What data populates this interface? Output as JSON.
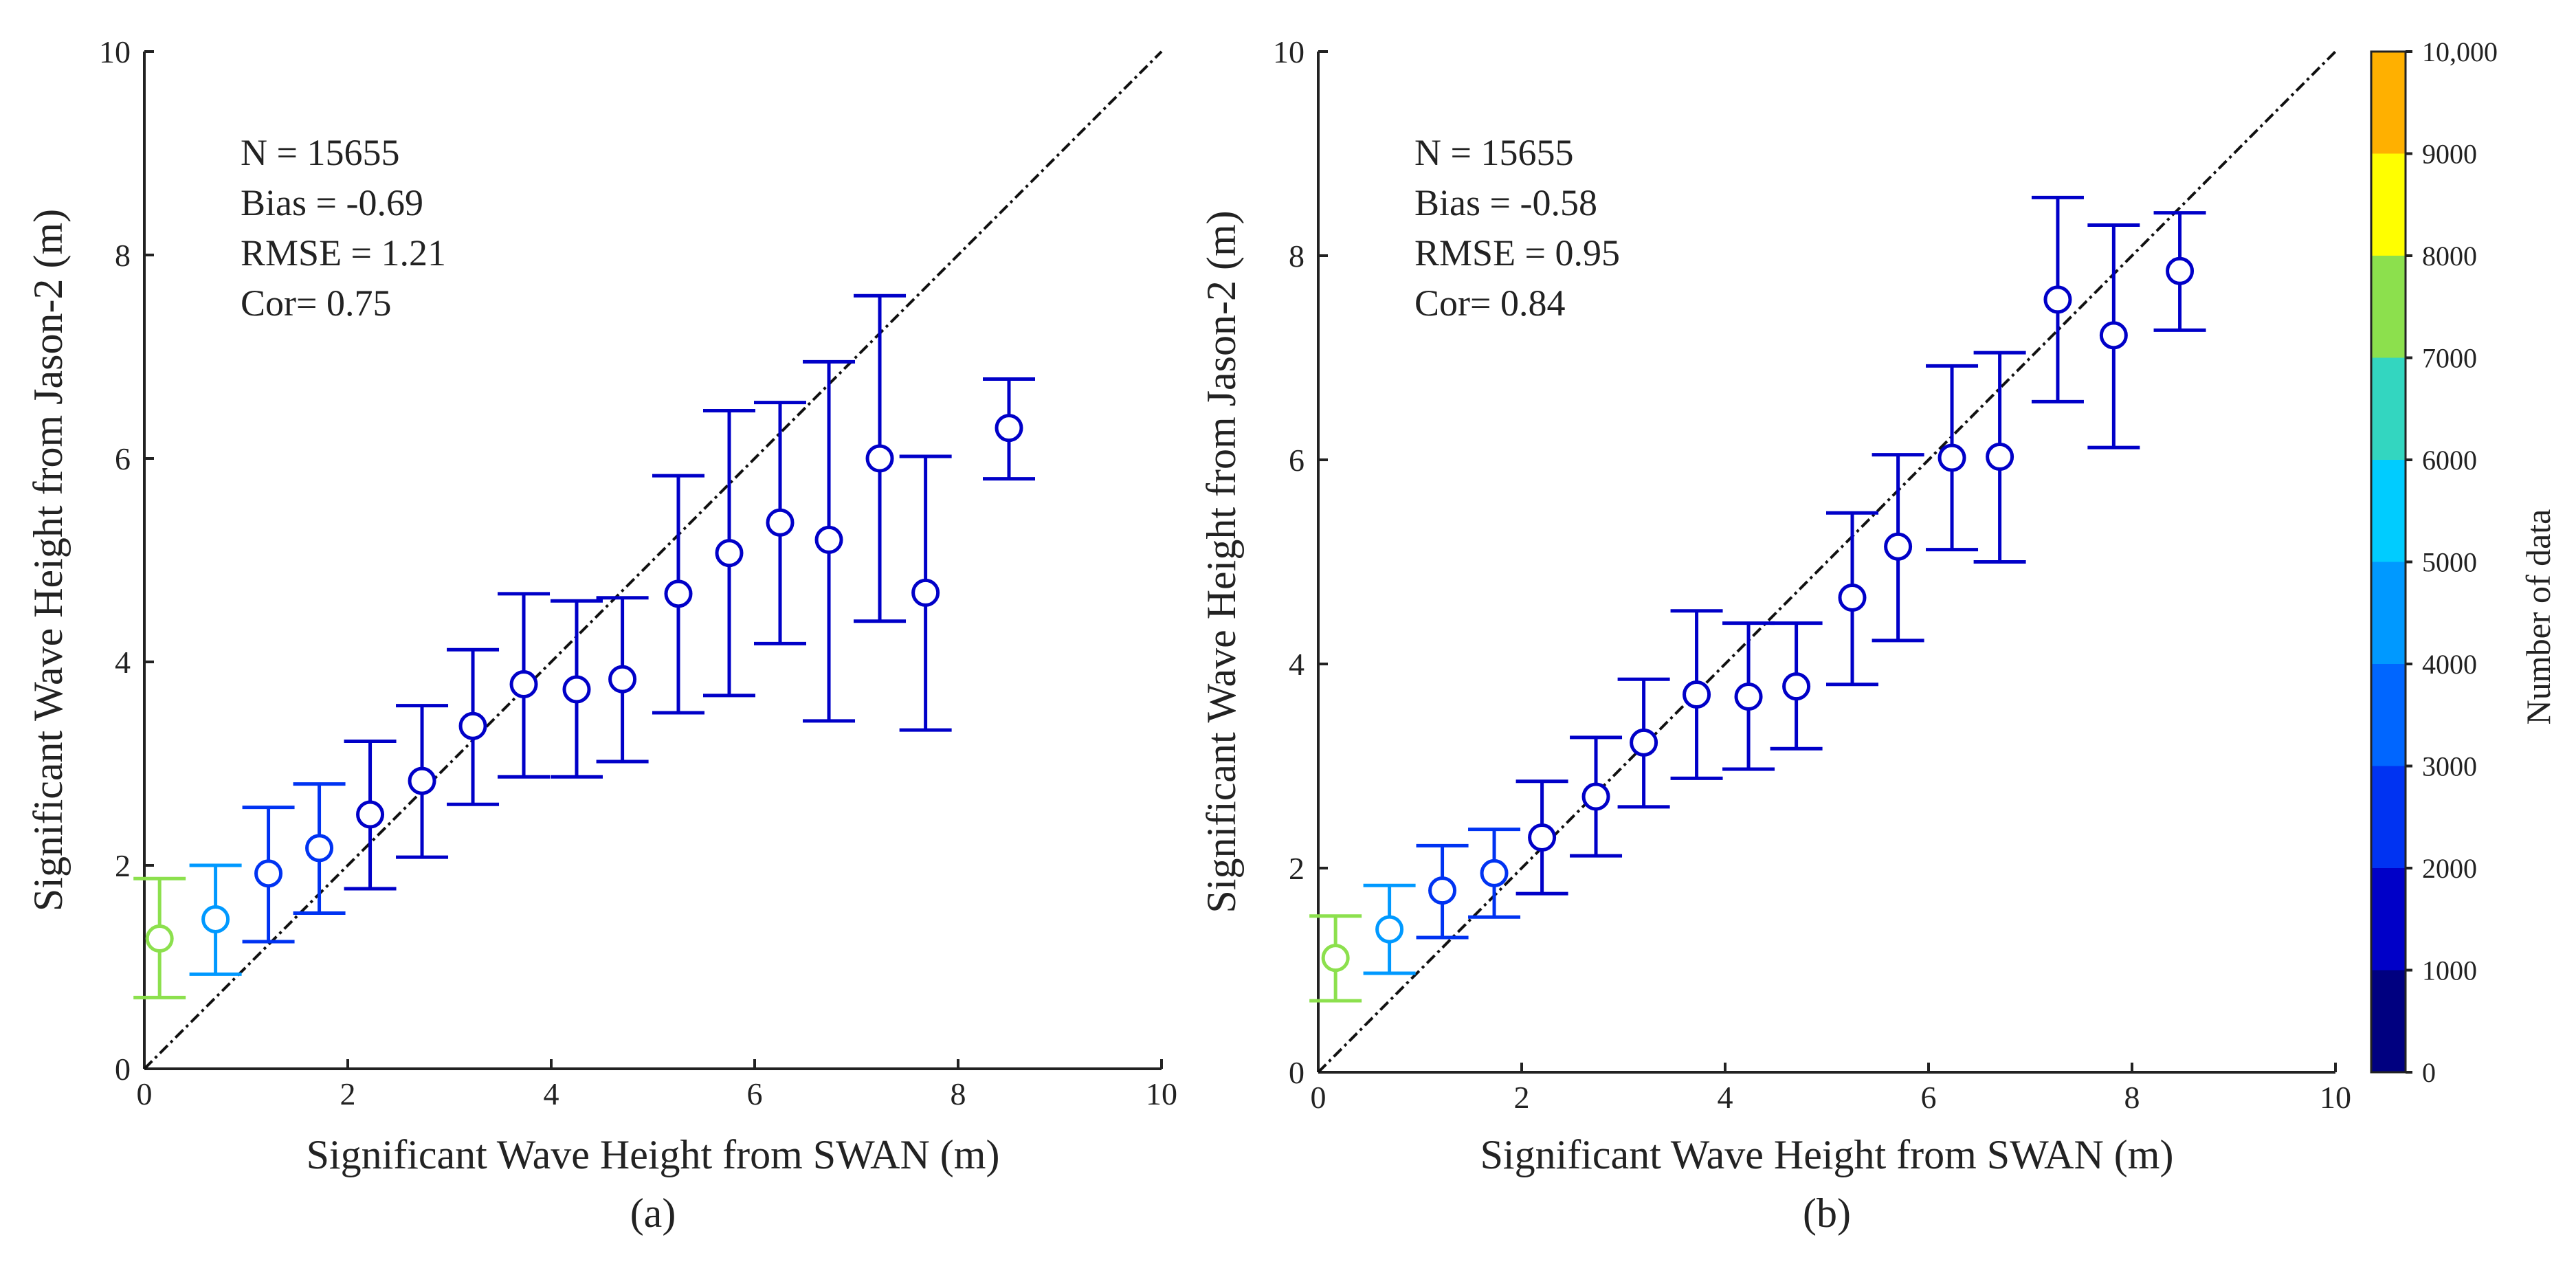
{
  "chart_data": [
    {
      "type": "scatter",
      "panel_label": "(a)",
      "xlabel": "Significant Wave Height from SWAN (m)",
      "ylabel": "Significant Wave Height from Jason-2 (m)",
      "xlim": [
        0,
        10
      ],
      "ylim": [
        0,
        10
      ],
      "xticks": [
        "0",
        "2",
        "4",
        "6",
        "8",
        "10"
      ],
      "yticks": [
        "0",
        "2",
        "4",
        "6",
        "8",
        "10"
      ],
      "reference_line": "1:1",
      "stats": [
        "N = 15655",
        "Bias = -0.69",
        "RMSE = 1.21",
        "Cor= 0.75"
      ],
      "points": [
        {
          "x": 0.15,
          "y": 1.28,
          "ylo": 0.7,
          "yhi": 1.87,
          "n": 7500
        },
        {
          "x": 0.7,
          "y": 1.47,
          "ylo": 0.93,
          "yhi": 2.0,
          "n": 4500
        },
        {
          "x": 1.22,
          "y": 1.92,
          "ylo": 1.25,
          "yhi": 2.57,
          "n": 2500
        },
        {
          "x": 1.72,
          "y": 2.17,
          "ylo": 1.53,
          "yhi": 2.8,
          "n": 2500
        },
        {
          "x": 2.22,
          "y": 2.5,
          "ylo": 1.77,
          "yhi": 3.22,
          "n": 1500
        },
        {
          "x": 2.73,
          "y": 2.83,
          "ylo": 2.08,
          "yhi": 3.57,
          "n": 1500
        },
        {
          "x": 3.23,
          "y": 3.37,
          "ylo": 2.6,
          "yhi": 4.12,
          "n": 1500
        },
        {
          "x": 3.73,
          "y": 3.78,
          "ylo": 2.87,
          "yhi": 4.67,
          "n": 1500
        },
        {
          "x": 4.25,
          "y": 3.73,
          "ylo": 2.87,
          "yhi": 4.6,
          "n": 1500
        },
        {
          "x": 4.7,
          "y": 3.83,
          "ylo": 3.02,
          "yhi": 4.63,
          "n": 1500
        },
        {
          "x": 5.25,
          "y": 4.67,
          "ylo": 3.5,
          "yhi": 5.83,
          "n": 1500
        },
        {
          "x": 5.75,
          "y": 5.07,
          "ylo": 3.67,
          "yhi": 6.47,
          "n": 1500
        },
        {
          "x": 6.25,
          "y": 5.37,
          "ylo": 4.18,
          "yhi": 6.55,
          "n": 1500
        },
        {
          "x": 6.73,
          "y": 5.2,
          "ylo": 3.42,
          "yhi": 6.95,
          "n": 1500
        },
        {
          "x": 7.23,
          "y": 6.0,
          "ylo": 4.4,
          "yhi": 7.6,
          "n": 1500
        },
        {
          "x": 7.68,
          "y": 4.68,
          "ylo": 3.33,
          "yhi": 6.02,
          "n": 1500
        },
        {
          "x": 8.5,
          "y": 6.3,
          "ylo": 5.8,
          "yhi": 6.78,
          "n": 1500
        }
      ]
    },
    {
      "type": "scatter",
      "panel_label": "(b)",
      "xlabel": "Significant Wave Height from SWAN (m)",
      "ylabel": "Significant Wave Height from Jason-2 (m)",
      "xlim": [
        0,
        10
      ],
      "ylim": [
        0,
        10
      ],
      "xticks": [
        "0",
        "2",
        "4",
        "6",
        "8",
        "10"
      ],
      "yticks": [
        "0",
        "2",
        "4",
        "6",
        "8",
        "10"
      ],
      "reference_line": "1:1",
      "stats": [
        "N = 15655",
        "Bias = -0.58",
        "RMSE = 0.95",
        "Cor= 0.84"
      ],
      "points": [
        {
          "x": 0.17,
          "y": 1.12,
          "ylo": 0.7,
          "yhi": 1.53,
          "n": 7500
        },
        {
          "x": 0.7,
          "y": 1.4,
          "ylo": 0.97,
          "yhi": 1.83,
          "n": 4500
        },
        {
          "x": 1.22,
          "y": 1.78,
          "ylo": 1.32,
          "yhi": 2.22,
          "n": 2500
        },
        {
          "x": 1.73,
          "y": 1.95,
          "ylo": 1.52,
          "yhi": 2.38,
          "n": 2500
        },
        {
          "x": 2.2,
          "y": 2.3,
          "ylo": 1.75,
          "yhi": 2.85,
          "n": 1500
        },
        {
          "x": 2.73,
          "y": 2.7,
          "ylo": 2.12,
          "yhi": 3.28,
          "n": 1500
        },
        {
          "x": 3.2,
          "y": 3.23,
          "ylo": 2.6,
          "yhi": 3.85,
          "n": 1500
        },
        {
          "x": 3.72,
          "y": 3.7,
          "ylo": 2.88,
          "yhi": 4.52,
          "n": 1500
        },
        {
          "x": 4.23,
          "y": 3.68,
          "ylo": 2.97,
          "yhi": 4.4,
          "n": 1500
        },
        {
          "x": 4.7,
          "y": 3.78,
          "ylo": 3.17,
          "yhi": 4.4,
          "n": 1500
        },
        {
          "x": 5.25,
          "y": 4.65,
          "ylo": 3.8,
          "yhi": 5.48,
          "n": 1500
        },
        {
          "x": 5.7,
          "y": 5.15,
          "ylo": 4.23,
          "yhi": 6.05,
          "n": 1500
        },
        {
          "x": 6.23,
          "y": 6.02,
          "ylo": 5.12,
          "yhi": 6.92,
          "n": 1500
        },
        {
          "x": 6.7,
          "y": 6.03,
          "ylo": 5.0,
          "yhi": 7.05,
          "n": 1500
        },
        {
          "x": 7.27,
          "y": 7.57,
          "ylo": 6.57,
          "yhi": 8.57,
          "n": 1500
        },
        {
          "x": 7.82,
          "y": 7.22,
          "ylo": 6.12,
          "yhi": 8.3,
          "n": 1500
        },
        {
          "x": 8.47,
          "y": 7.85,
          "ylo": 7.27,
          "yhi": 8.42,
          "n": 1500
        }
      ]
    }
  ],
  "colorbar": {
    "title": "Number of data",
    "labels": [
      "0",
      "1000",
      "2000",
      "3000",
      "4000",
      "5000",
      "6000",
      "7000",
      "8000",
      "9000",
      "10,000"
    ],
    "colors": [
      "#000080",
      "#0000C8",
      "#0033F2",
      "#0066FF",
      "#0099FF",
      "#00CCFF",
      "#33D6C0",
      "#8CE04D",
      "#FFFF00",
      "#FFB000",
      "#FF5000"
    ],
    "thresholds": [
      0,
      1000,
      2000,
      3000,
      4000,
      5000,
      6000,
      7000,
      8000,
      9000,
      10000
    ]
  }
}
